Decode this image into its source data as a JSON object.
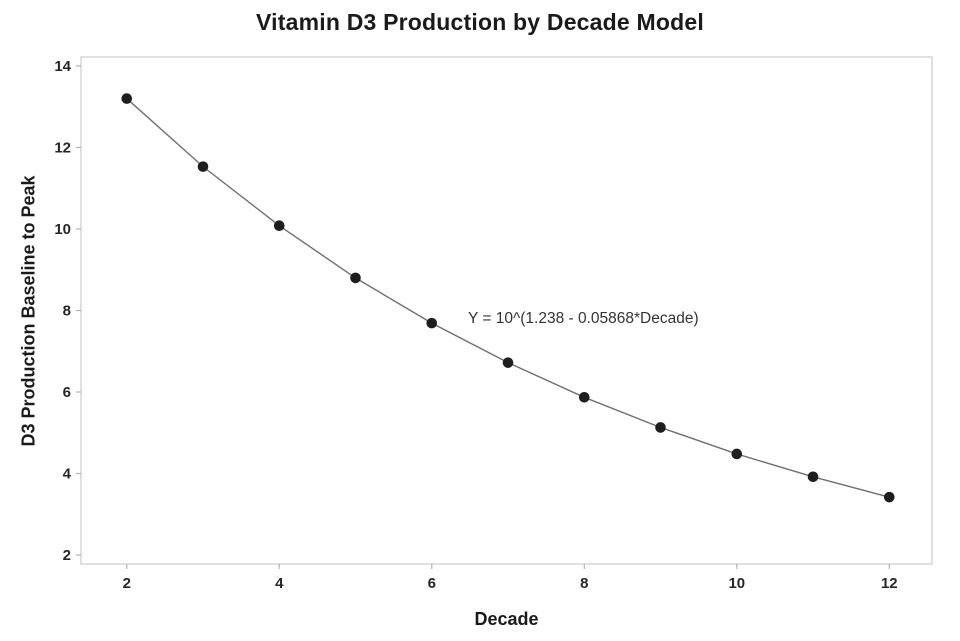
{
  "chart_data": {
    "type": "line",
    "marker": "circle",
    "title": "Vitamin D3 Production by Decade Model",
    "xlabel": "Decade",
    "ylabel": "D3 Production Baseline to Peak",
    "x": [
      2,
      3,
      4,
      5,
      6,
      7,
      8,
      9,
      10,
      11,
      12
    ],
    "y": [
      13.2,
      11.53,
      10.08,
      8.8,
      7.69,
      6.72,
      5.87,
      5.13,
      4.48,
      3.92,
      3.42
    ],
    "xlim": [
      1.4,
      12.56
    ],
    "ylim": [
      1.78,
      14.22
    ],
    "xticks": [
      2,
      4,
      6,
      8,
      10,
      12
    ],
    "yticks": [
      2,
      4,
      6,
      8,
      10,
      12,
      14
    ],
    "grid": false,
    "legend": "none",
    "annotation": {
      "text": "Y = 10^(1.238 - 0.05868*Decade)"
    },
    "colors": {
      "background": "#ffffff",
      "frame": "#cfcfcf",
      "tick_mark": "#b3b3b3",
      "tick_label": "#262626",
      "line": "#6f6f6f",
      "marker": "#1e1e1e",
      "title_text": "#1a1a1a",
      "annotation_text": "#333333"
    }
  }
}
